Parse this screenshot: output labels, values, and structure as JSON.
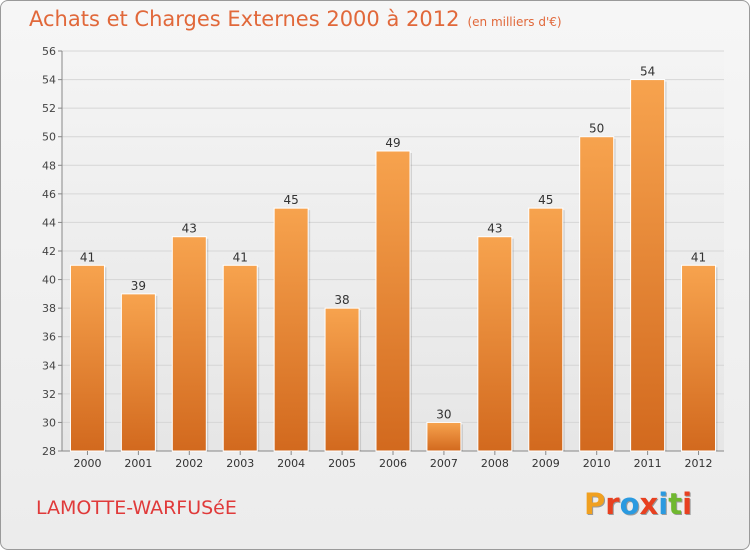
{
  "header": {
    "title": "Achats et Charges Externes 2000 à 2012",
    "subtitle": "(en milliers d'€)"
  },
  "footer": {
    "commune": "LAMOTTE-WARFUSéE",
    "logo": "Proxiti",
    "logo_colors": [
      "#f0a020",
      "#e84020",
      "#2a9ae0",
      "#e84020",
      "#2a9ae0",
      "#70b830",
      "#e84020"
    ]
  },
  "colors": {
    "bar_top": "#f7a34e",
    "bar_bottom": "#d2691e",
    "title": "#e1683a",
    "grid": "#d6d6d6"
  },
  "chart_data": {
    "type": "bar",
    "title": "Achats et Charges Externes 2000 à 2012",
    "subtitle": "(en milliers d'€)",
    "categories": [
      "2000",
      "2001",
      "2002",
      "2003",
      "2004",
      "2005",
      "2006",
      "2007",
      "2008",
      "2009",
      "2010",
      "2011",
      "2012"
    ],
    "values": [
      41,
      39,
      43,
      41,
      45,
      38,
      49,
      30,
      43,
      45,
      50,
      54,
      41
    ],
    "ylim": [
      28,
      56
    ],
    "yticks": [
      28,
      30,
      32,
      34,
      36,
      38,
      40,
      42,
      44,
      46,
      48,
      50,
      52,
      54,
      56
    ],
    "grid": true,
    "xlabel": "",
    "ylabel": ""
  }
}
